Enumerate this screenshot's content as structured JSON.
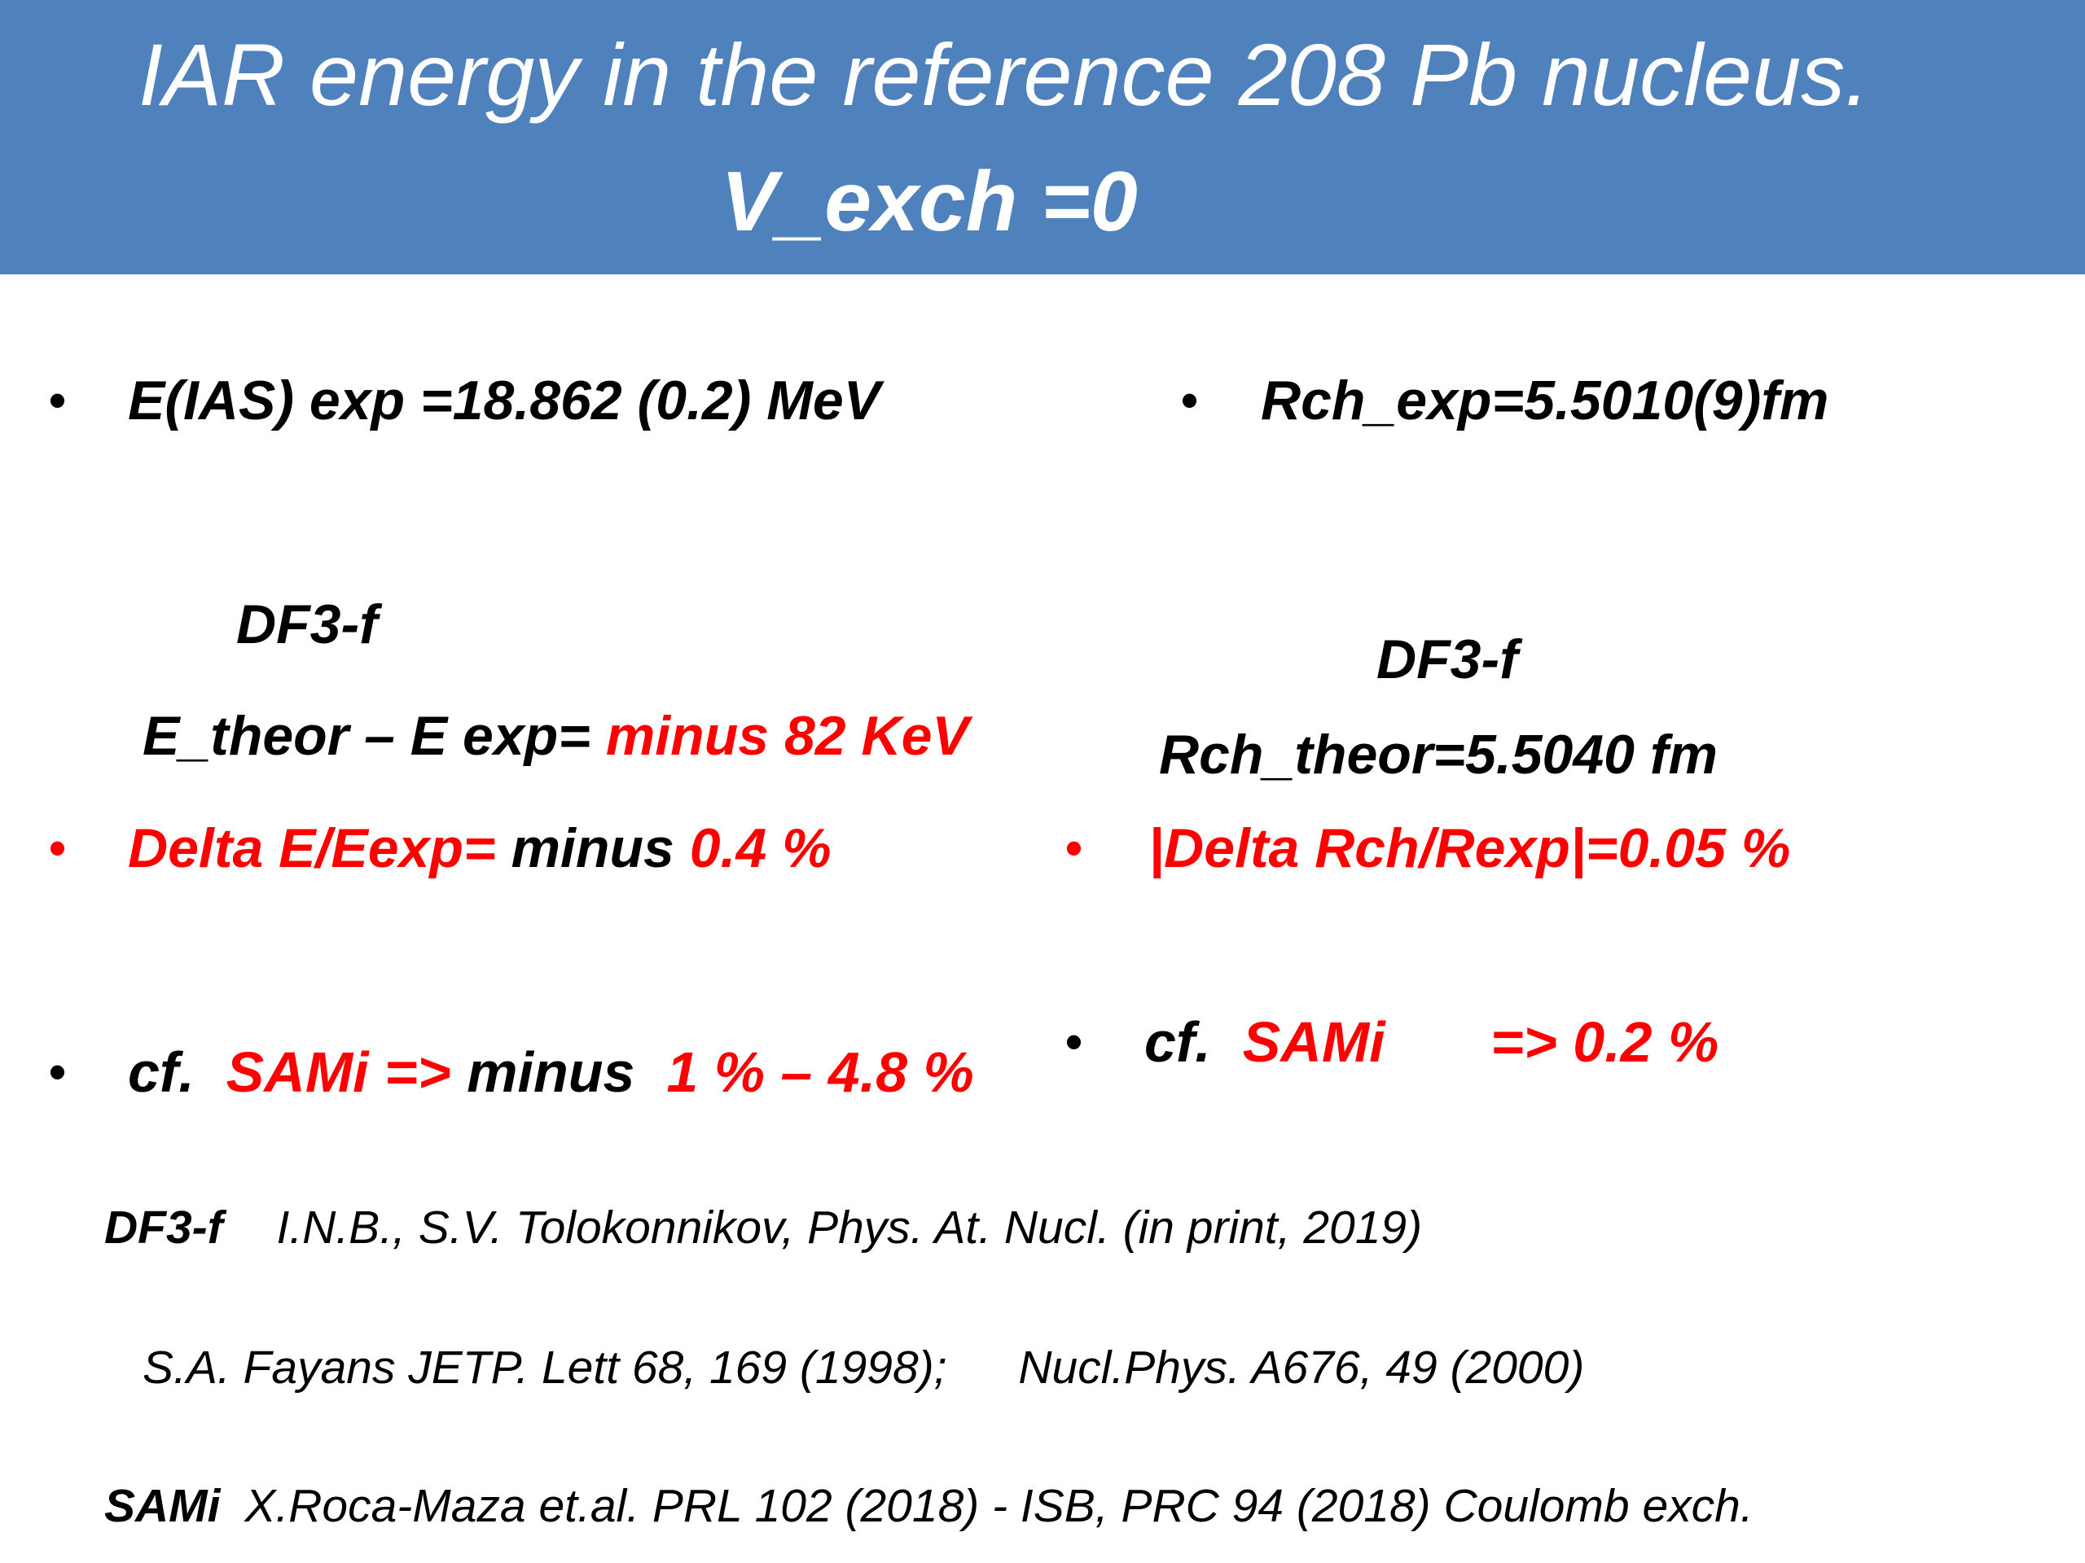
{
  "title": {
    "line1": "IAR energy in the reference  208 Pb nucleus.",
    "line2": "V_exch =0"
  },
  "left": {
    "eias_exp": "E(IAS) exp =18.862 (0.2)  MeV",
    "df3_label": "DF3-f",
    "diff_prefix": "E_theor – E exp=",
    "diff_value": "minus 82 KeV",
    "delta_prefix": "Delta E/Eexp=",
    "delta_minus": "minus",
    "delta_value": "0.4 %",
    "cf_prefix": "cf.",
    "cf_sami": "SAMi  =>",
    "cf_minus": "minus",
    "cf_range": "1 % – 4.8  %"
  },
  "right": {
    "rch_exp": "Rch_exp=5.5010(9)fm",
    "df3_label": "DF3-f",
    "rch_theor": "Rch_theor=5.5040 fm",
    "delta": "|Delta Rch/Rexp|=0.05  %",
    "cf_prefix": "cf.",
    "cf_sami": "SAMi",
    "cf_value": "=> 0.2 %"
  },
  "bullet_glyph": "•",
  "references": {
    "df3_label": "DF3-f",
    "df3_text": "I.N.B., S.V. Tolokonnikov, Phys. At. Nucl.  (in print, 2019)",
    "fayans1": "S.A. Fayans  JETP. Lett 68, 169 (1998);",
    "fayans2": "Nucl.Phys. A676, 49 (2000)",
    "sami_label": "SAMi",
    "sami_text": "X.Roca-Maza et.al. PRL 102 (2018) - ISB,   PRC 94 (2018)  Coulomb exch."
  },
  "colors": {
    "header_bg": "#4f81bd",
    "accent_red": "#ff0000",
    "text": "#000000"
  }
}
